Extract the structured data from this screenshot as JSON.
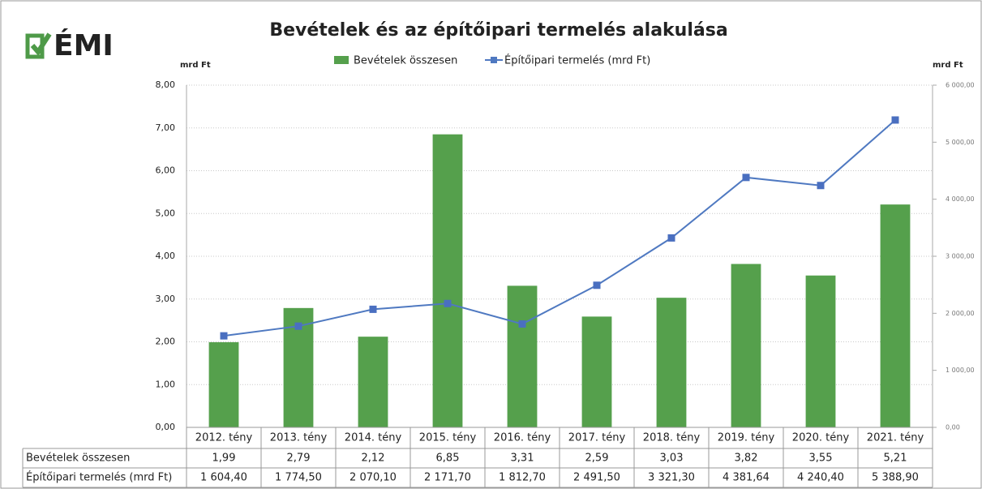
{
  "logo": "ÉMI",
  "chart_data": {
    "type": "bar-line",
    "title": "Bevételek és az építőipari termelés alakulása",
    "y_label": "mrd Ft",
    "y2_label": "mrd Ft",
    "categories": [
      "2012. tény",
      "2013. tény",
      "2014. tény",
      "2015. tény",
      "2016. tény",
      "2017. tény",
      "2018. tény",
      "2019. tény",
      "2020. tény",
      "2021. tény"
    ],
    "series": [
      {
        "name": "Bevételek összesen",
        "type": "bar",
        "color": "#55a04c",
        "values": [
          1.99,
          2.79,
          2.12,
          6.85,
          3.31,
          2.59,
          3.03,
          3.82,
          3.55,
          5.21
        ],
        "value_labels": [
          "1,99",
          "2,79",
          "2,12",
          "6,85",
          "3,31",
          "2,59",
          "3,03",
          "3,82",
          "3,55",
          "5,21"
        ]
      },
      {
        "name": "Építőipari termelés (mrd Ft)",
        "type": "line",
        "axis": "y2",
        "color": "#4f79c1",
        "values": [
          1604.4,
          1774.5,
          2070.1,
          2171.7,
          1812.7,
          2491.5,
          3321.3,
          4381.64,
          4240.4,
          5388.9
        ],
        "value_labels": [
          "1 604,40",
          "1 774,50",
          "2 070,10",
          "2 171,70",
          "1 812,70",
          "2 491,50",
          "3 321,30",
          "4 381,64",
          "4 240,40",
          "5 388,90"
        ]
      }
    ],
    "ylim": [
      0,
      8
    ],
    "yticks": [
      {
        "value": 0,
        "label": "0,00"
      },
      {
        "value": 1,
        "label": "1,00"
      },
      {
        "value": 2,
        "label": "2,00"
      },
      {
        "value": 3,
        "label": "3,00"
      },
      {
        "value": 4,
        "label": "4,00"
      },
      {
        "value": 5,
        "label": "5,00"
      },
      {
        "value": 6,
        "label": "6,00"
      },
      {
        "value": 7,
        "label": "7,00"
      },
      {
        "value": 8,
        "label": "8,00"
      }
    ],
    "y2lim": [
      0,
      6000
    ],
    "y2ticks": [
      {
        "value": 0,
        "label": "0,00"
      },
      {
        "value": 1000,
        "label": "1 000,00"
      },
      {
        "value": 2000,
        "label": "2 000,00"
      },
      {
        "value": 3000,
        "label": "3 000,00"
      },
      {
        "value": 4000,
        "label": "4 000,00"
      },
      {
        "value": 5000,
        "label": "5 000,00"
      },
      {
        "value": 6000,
        "label": "6 000,00"
      }
    ],
    "grid": true,
    "legend": "top"
  }
}
